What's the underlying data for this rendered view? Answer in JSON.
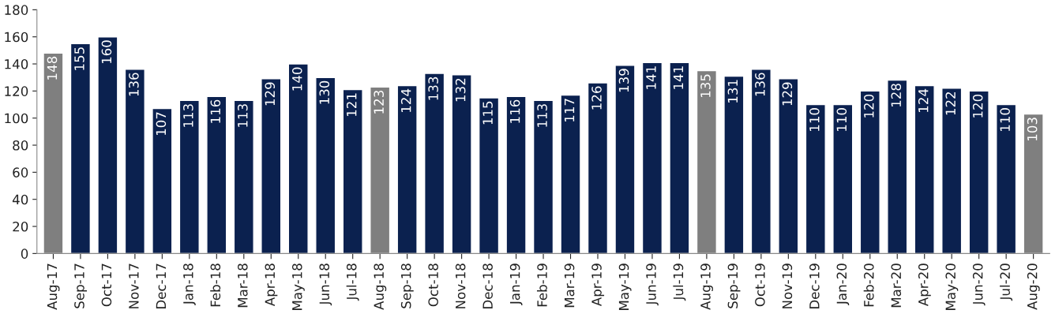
{
  "chart_data": {
    "type": "bar",
    "categories": [
      "Aug-17",
      "Sep-17",
      "Oct-17",
      "Nov-17",
      "Dec-17",
      "Jan-18",
      "Feb-18",
      "Mar-18",
      "Apr-18",
      "May-18",
      "Jun-18",
      "Jul-18",
      "Aug-18",
      "Sep-18",
      "Oct-18",
      "Nov-18",
      "Dec-18",
      "Jan-19",
      "Feb-19",
      "Mar-19",
      "Apr-19",
      "May-19",
      "Jun-19",
      "Jul-19",
      "Aug-19",
      "Sep-19",
      "Oct-19",
      "Nov-19",
      "Dec-19",
      "Jan-20",
      "Feb-20",
      "Mar-20",
      "Apr-20",
      "May-20",
      "Jun-20",
      "Jul-20",
      "Aug-20"
    ],
    "values": [
      148,
      155,
      160,
      136,
      107,
      113,
      116,
      113,
      129,
      140,
      130,
      121,
      123,
      124,
      133,
      132,
      115,
      116,
      113,
      117,
      126,
      139,
      141,
      141,
      135,
      131,
      136,
      129,
      110,
      110,
      120,
      128,
      124,
      122,
      120,
      110,
      103
    ],
    "colors": [
      "#7f7f7f",
      "#0b214f",
      "#0b214f",
      "#0b214f",
      "#0b214f",
      "#0b214f",
      "#0b214f",
      "#0b214f",
      "#0b214f",
      "#0b214f",
      "#0b214f",
      "#0b214f",
      "#7f7f7f",
      "#0b214f",
      "#0b214f",
      "#0b214f",
      "#0b214f",
      "#0b214f",
      "#0b214f",
      "#0b214f",
      "#0b214f",
      "#0b214f",
      "#0b214f",
      "#0b214f",
      "#7f7f7f",
      "#0b214f",
      "#0b214f",
      "#0b214f",
      "#0b214f",
      "#0b214f",
      "#0b214f",
      "#0b214f",
      "#0b214f",
      "#0b214f",
      "#0b214f",
      "#0b214f",
      "#7f7f7f"
    ],
    "ylim": [
      0,
      180
    ],
    "yticks": [
      0,
      20,
      40,
      60,
      80,
      100,
      120,
      140,
      160,
      180
    ],
    "data_labels": true,
    "grid": false,
    "legend": false
  }
}
